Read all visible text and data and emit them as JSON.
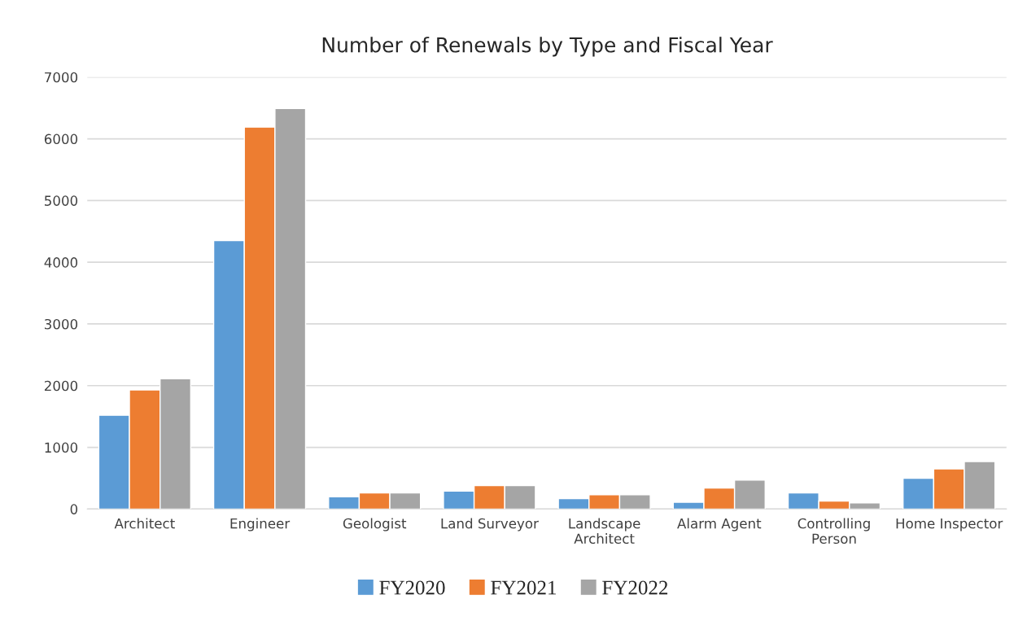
{
  "chart_data": {
    "type": "bar",
    "title": "Number of Renewals by Type and Fiscal Year",
    "categories": [
      "Architect",
      "Engineer",
      "Geologist",
      "Land Surveyor",
      "Landscape Architect",
      "Alarm Agent",
      "Controlling Person",
      "Home Inspector"
    ],
    "series": [
      {
        "name": "FY2020",
        "color": "#5b9bd5",
        "values": [
          1520,
          4350,
          200,
          290,
          170,
          110,
          260,
          500
        ]
      },
      {
        "name": "FY2021",
        "color": "#ed7d31",
        "values": [
          1930,
          6190,
          260,
          380,
          230,
          340,
          130,
          650
        ]
      },
      {
        "name": "FY2022",
        "color": "#a5a5a5",
        "values": [
          2110,
          6490,
          260,
          380,
          230,
          470,
          100,
          770
        ]
      }
    ],
    "ylim": [
      0,
      7000
    ],
    "yticks": [
      0,
      1000,
      2000,
      3000,
      4000,
      5000,
      6000,
      7000
    ],
    "grid": "y",
    "legend": "bottom"
  }
}
